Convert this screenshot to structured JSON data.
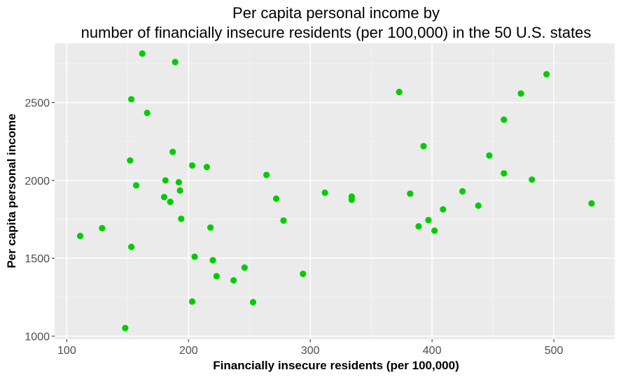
{
  "chart_data": {
    "type": "scatter",
    "title_lines": [
      "Per capita personal income by",
      "number of financially insecure residents (per 100,000) in the 50 U.S. states"
    ],
    "xlabel": "Financially insecure residents (per 100,000)",
    "ylabel": "Per capita personal income",
    "xlim": [
      90,
      550
    ],
    "ylim": [
      980,
      2880
    ],
    "xticks": [
      100,
      200,
      300,
      400,
      500
    ],
    "yticks": [
      1000,
      1500,
      2000,
      2500
    ],
    "grid": true,
    "point_color": "#00cd00",
    "panel_color": "#ebebeb",
    "points": [
      {
        "x": 111,
        "y": 1643
      },
      {
        "x": 129,
        "y": 1693
      },
      {
        "x": 148,
        "y": 1052
      },
      {
        "x": 152,
        "y": 2128
      },
      {
        "x": 153,
        "y": 1573
      },
      {
        "x": 153,
        "y": 2521
      },
      {
        "x": 157,
        "y": 1968
      },
      {
        "x": 162,
        "y": 2815
      },
      {
        "x": 166,
        "y": 2433
      },
      {
        "x": 180,
        "y": 1893
      },
      {
        "x": 181,
        "y": 2000
      },
      {
        "x": 185,
        "y": 1862
      },
      {
        "x": 187,
        "y": 2183
      },
      {
        "x": 189,
        "y": 2760
      },
      {
        "x": 192,
        "y": 1988
      },
      {
        "x": 193,
        "y": 1935
      },
      {
        "x": 194,
        "y": 1753
      },
      {
        "x": 203,
        "y": 2096
      },
      {
        "x": 203,
        "y": 1222
      },
      {
        "x": 205,
        "y": 1510
      },
      {
        "x": 215,
        "y": 2086
      },
      {
        "x": 218,
        "y": 1697
      },
      {
        "x": 220,
        "y": 1487
      },
      {
        "x": 223,
        "y": 1385
      },
      {
        "x": 237,
        "y": 1358
      },
      {
        "x": 246,
        "y": 1440
      },
      {
        "x": 253,
        "y": 1218
      },
      {
        "x": 264,
        "y": 2035
      },
      {
        "x": 272,
        "y": 1883
      },
      {
        "x": 278,
        "y": 1742
      },
      {
        "x": 294,
        "y": 1400
      },
      {
        "x": 312,
        "y": 1921
      },
      {
        "x": 334,
        "y": 1896
      },
      {
        "x": 334,
        "y": 1876
      },
      {
        "x": 373,
        "y": 2568
      },
      {
        "x": 382,
        "y": 1915
      },
      {
        "x": 389,
        "y": 1705
      },
      {
        "x": 393,
        "y": 2220
      },
      {
        "x": 397,
        "y": 1745
      },
      {
        "x": 402,
        "y": 1677
      },
      {
        "x": 409,
        "y": 1814
      },
      {
        "x": 425,
        "y": 1930
      },
      {
        "x": 438,
        "y": 1838
      },
      {
        "x": 447,
        "y": 2160
      },
      {
        "x": 459,
        "y": 2390
      },
      {
        "x": 459,
        "y": 2045
      },
      {
        "x": 473,
        "y": 2558
      },
      {
        "x": 482,
        "y": 2005
      },
      {
        "x": 494,
        "y": 2682
      },
      {
        "x": 531,
        "y": 1852
      }
    ]
  }
}
